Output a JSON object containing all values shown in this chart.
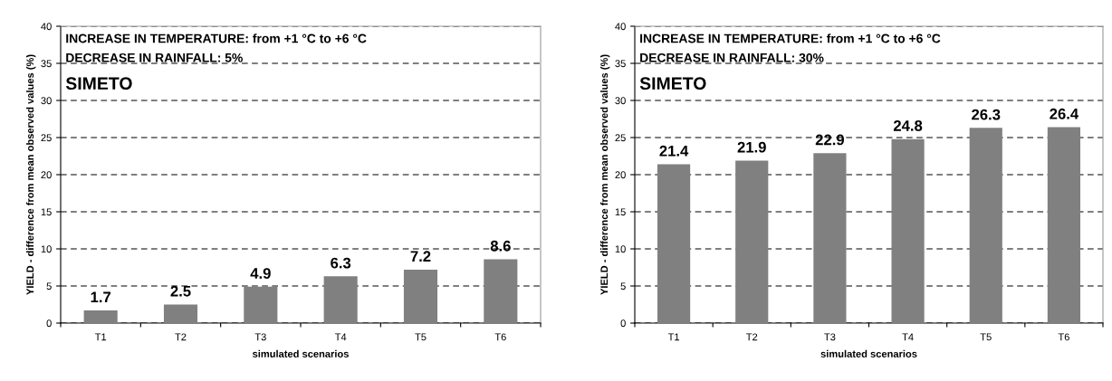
{
  "chart_data": [
    {
      "type": "bar",
      "categories": [
        "T1",
        "T2",
        "T3",
        "T4",
        "T5",
        "T6"
      ],
      "values": [
        1.7,
        2.5,
        4.9,
        6.3,
        7.2,
        8.6
      ],
      "color": "#808080",
      "xlabel": "simulated scenarios",
      "ylabel": "YIELD - difference from mean observed values (%)",
      "ylim": [
        0,
        40
      ],
      "yticks": [
        0,
        5,
        10,
        15,
        20,
        25,
        30,
        35,
        40
      ],
      "grid": "y",
      "data_labels": true,
      "annotations": [
        "INCREASE IN TEMPERATURE: from +1 °C to +6 °C",
        "DECREASE IN RAINFALL: 5%",
        "SIMETO"
      ]
    },
    {
      "type": "bar",
      "categories": [
        "T1",
        "T2",
        "T3",
        "T4",
        "T5",
        "T6"
      ],
      "values": [
        21.4,
        21.9,
        22.9,
        24.8,
        26.3,
        26.4
      ],
      "color": "#808080",
      "xlabel": "simulated scenarios",
      "ylabel": "YIELD - difference from mean observed values (%)",
      "ylim": [
        0,
        40
      ],
      "yticks": [
        0,
        5,
        10,
        15,
        20,
        25,
        30,
        35,
        40
      ],
      "grid": "y",
      "data_labels": true,
      "annotations": [
        "INCREASE IN TEMPERATURE: from +1 °C to +6 °C",
        "DECREASE IN RAINFALL: 30%",
        "SIMETO"
      ]
    }
  ]
}
